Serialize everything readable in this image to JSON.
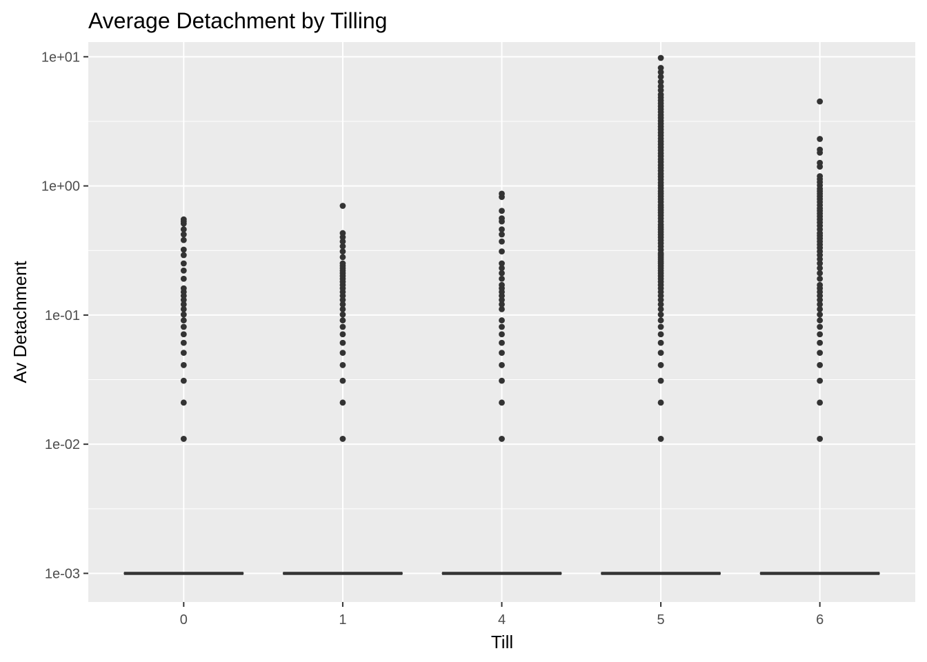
{
  "chart_data": {
    "type": "boxplot",
    "title": "Average Detachment by Tilling",
    "xlabel": "Till",
    "ylabel": "Av Detachment",
    "y_scale": "log10",
    "ylim": [
      0.0006,
      13
    ],
    "y_ticks": [
      0.001,
      0.01,
      0.1,
      1,
      10
    ],
    "y_tick_labels": [
      "1e-03",
      "1e-02",
      "1e-01",
      "1e+00",
      "1e+01"
    ],
    "categories": [
      "0",
      "1",
      "4",
      "5",
      "6"
    ],
    "grid": true,
    "background": "#ebebeb",
    "grid_color": "#ffffff",
    "point_color": "#333333",
    "boxes": [
      {
        "category": "0",
        "median": 0.001,
        "q1": 0.001,
        "q3": 0.001,
        "outliers": [
          0.011,
          0.021,
          0.031,
          0.041,
          0.051,
          0.061,
          0.071,
          0.081,
          0.091,
          0.101,
          0.111,
          0.121,
          0.131,
          0.141,
          0.151,
          0.161,
          0.191,
          0.221,
          0.251,
          0.291,
          0.321,
          0.381,
          0.421,
          0.461,
          0.511,
          0.531,
          0.551
        ]
      },
      {
        "category": "1",
        "median": 0.001,
        "q1": 0.001,
        "q3": 0.001,
        "outliers": [
          0.011,
          0.021,
          0.031,
          0.041,
          0.051,
          0.061,
          0.071,
          0.081,
          0.091,
          0.101,
          0.111,
          0.121,
          0.131,
          0.141,
          0.151,
          0.161,
          0.171,
          0.181,
          0.191,
          0.201,
          0.211,
          0.221,
          0.231,
          0.241,
          0.251,
          0.281,
          0.311,
          0.341,
          0.371,
          0.401,
          0.431,
          0.701
        ]
      },
      {
        "category": "4",
        "median": 0.001,
        "q1": 0.001,
        "q3": 0.001,
        "outliers": [
          0.011,
          0.021,
          0.031,
          0.041,
          0.051,
          0.061,
          0.071,
          0.081,
          0.091,
          0.111,
          0.121,
          0.131,
          0.141,
          0.151,
          0.161,
          0.171,
          0.191,
          0.211,
          0.231,
          0.251,
          0.311,
          0.371,
          0.421,
          0.461,
          0.531,
          0.561,
          0.641,
          0.821,
          0.871
        ]
      },
      {
        "category": "5",
        "median": 0.001,
        "q1": 0.001,
        "q3": 0.001,
        "outliers": [
          0.011,
          0.021,
          0.031,
          0.041,
          0.051,
          0.061,
          0.071,
          0.081,
          0.091,
          0.101,
          0.111,
          0.121,
          0.131,
          0.141,
          0.151,
          0.161,
          0.171,
          0.181,
          0.191,
          0.201,
          0.211,
          0.221,
          0.231,
          0.241,
          0.251,
          0.261,
          0.271,
          0.281,
          0.291,
          0.301,
          0.32,
          0.34,
          0.36,
          0.38,
          0.4,
          0.42,
          0.44,
          0.46,
          0.48,
          0.5,
          0.53,
          0.56,
          0.59,
          0.62,
          0.65,
          0.68,
          0.71,
          0.75,
          0.79,
          0.83,
          0.87,
          0.91,
          0.96,
          1.01,
          1.06,
          1.12,
          1.18,
          1.24,
          1.31,
          1.38,
          1.45,
          1.53,
          1.61,
          1.7,
          1.79,
          1.89,
          1.99,
          2.1,
          2.21,
          2.33,
          2.46,
          2.59,
          2.73,
          2.88,
          3.03,
          3.19,
          3.36,
          3.54,
          3.73,
          3.93,
          4.14,
          4.36,
          4.59,
          4.84,
          5.1,
          5.5,
          5.9,
          6.4,
          7.0,
          7.6,
          8.2,
          9.8
        ]
      },
      {
        "category": "6",
        "median": 0.001,
        "q1": 0.001,
        "q3": 0.001,
        "outliers": [
          0.011,
          0.021,
          0.031,
          0.041,
          0.051,
          0.061,
          0.071,
          0.081,
          0.091,
          0.101,
          0.111,
          0.121,
          0.131,
          0.141,
          0.151,
          0.161,
          0.171,
          0.191,
          0.211,
          0.231,
          0.251,
          0.271,
          0.291,
          0.311,
          0.331,
          0.351,
          0.371,
          0.391,
          0.411,
          0.431,
          0.461,
          0.491,
          0.521,
          0.551,
          0.581,
          0.611,
          0.641,
          0.671,
          0.711,
          0.751,
          0.791,
          0.831,
          0.871,
          0.911,
          0.951,
          1.01,
          1.07,
          1.13,
          1.19,
          1.41,
          1.51,
          1.81,
          1.91,
          2.31,
          4.51
        ]
      }
    ]
  }
}
